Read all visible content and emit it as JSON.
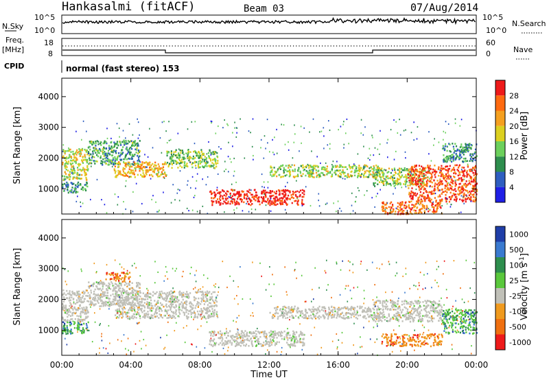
{
  "header": {
    "station": "Hankasalmi (fitACF)",
    "beam": "Beam 03",
    "date": "07/Aug/2014"
  },
  "strip": {
    "nsky_label": "N.Sky",
    "nsearch_label": "N.Search",
    "noise_ticks": [
      "10^5",
      "10^0"
    ],
    "freq_label": "Freq.",
    "freq_unit": "[MHz]",
    "freq_ticks": [
      "18",
      "8"
    ],
    "nave_label": "Nave",
    "nave_ticks": [
      "60",
      "0"
    ],
    "cpid_label": "CPID",
    "cpid_value": "normal (fast stereo) 153"
  },
  "chart_data": [
    {
      "type": "heatmap",
      "parameter": "power",
      "ylabel": "Slant Range [km]",
      "ylim": [
        180,
        4600
      ],
      "yticks": [
        1000,
        2000,
        3000,
        4000
      ],
      "xlim": [
        0,
        24
      ],
      "colorbar": {
        "label": "Power [dB]",
        "ticks": [
          "28",
          "24",
          "20",
          "16",
          "12",
          "8",
          "4"
        ],
        "colors": [
          "#ee1a1a",
          "#ff6a10",
          "#f5a020",
          "#dcd020",
          "#6cd05c",
          "#2e8e4e",
          "#2e5ec0",
          "#1f1fe6"
        ]
      },
      "echo_bands": [
        {
          "t": [
            0.0,
            1.5
          ],
          "r": [
            1300,
            2350
          ],
          "level": 0.55
        },
        {
          "t": [
            0.0,
            1.5
          ],
          "r": [
            900,
            1250
          ],
          "level": 0.3
        },
        {
          "t": [
            1.5,
            4.5
          ],
          "r": [
            1800,
            2600
          ],
          "level": 0.35
        },
        {
          "t": [
            3.0,
            6.0
          ],
          "r": [
            1400,
            1900
          ],
          "level": 0.65
        },
        {
          "t": [
            6.0,
            9.0
          ],
          "r": [
            1700,
            2300
          ],
          "level": 0.45
        },
        {
          "t": [
            8.5,
            14.0
          ],
          "r": [
            500,
            1000
          ],
          "level": 0.95
        },
        {
          "t": [
            12.0,
            18.5
          ],
          "r": [
            1400,
            1800
          ],
          "level": 0.5
        },
        {
          "t": [
            18.0,
            21.0
          ],
          "r": [
            1100,
            1700
          ],
          "level": 0.5
        },
        {
          "t": [
            18.5,
            22.0
          ],
          "r": [
            200,
            600
          ],
          "level": 0.8
        },
        {
          "t": [
            20.0,
            24.0
          ],
          "r": [
            600,
            1800
          ],
          "level": 0.85
        },
        {
          "t": [
            22.0,
            24.0
          ],
          "r": [
            1900,
            2500
          ],
          "level": 0.3
        }
      ]
    },
    {
      "type": "heatmap",
      "parameter": "velocity",
      "ylabel": "Slant Range [km]",
      "ylim": [
        180,
        4600
      ],
      "yticks": [
        1000,
        2000,
        3000,
        4000
      ],
      "xlim": [
        0,
        24
      ],
      "xlabel": "Time UT",
      "xticks": [
        "00:00",
        "04:00",
        "08:00",
        "12:00",
        "16:00",
        "20:00",
        "00:00"
      ],
      "colorbar": {
        "label": "Velocity [m s^-1]",
        "ticks": [
          "1000",
          "500",
          "100",
          "25",
          "-25",
          "-100",
          "-500",
          "-1000"
        ],
        "colors": [
          "#1f3ea8",
          "#3a7ad0",
          "#2e8e4e",
          "#5ac83c",
          "#c0c0b8",
          "#f09a1e",
          "#f07010",
          "#ee1a1a"
        ]
      },
      "echo_bands": [
        {
          "t": [
            0.0,
            1.5
          ],
          "r": [
            1300,
            2350
          ],
          "class": "gs"
        },
        {
          "t": [
            0.0,
            1.5
          ],
          "r": [
            900,
            1300
          ],
          "class": "pos"
        },
        {
          "t": [
            1.5,
            4.5
          ],
          "r": [
            1800,
            2600
          ],
          "class": "gs"
        },
        {
          "t": [
            2.5,
            4.0
          ],
          "r": [
            2600,
            2900
          ],
          "class": "neg"
        },
        {
          "t": [
            3.0,
            9.0
          ],
          "r": [
            1400,
            2300
          ],
          "class": "gs"
        },
        {
          "t": [
            8.5,
            14.0
          ],
          "r": [
            500,
            1000
          ],
          "class": "gs"
        },
        {
          "t": [
            12.0,
            18.5
          ],
          "r": [
            1400,
            1800
          ],
          "class": "gs"
        },
        {
          "t": [
            18.0,
            22.0
          ],
          "r": [
            1300,
            2000
          ],
          "class": "gs"
        },
        {
          "t": [
            18.5,
            22.0
          ],
          "r": [
            500,
            900
          ],
          "class": "neg"
        },
        {
          "t": [
            22.0,
            24.0
          ],
          "r": [
            900,
            1700
          ],
          "class": "pos"
        }
      ]
    }
  ]
}
